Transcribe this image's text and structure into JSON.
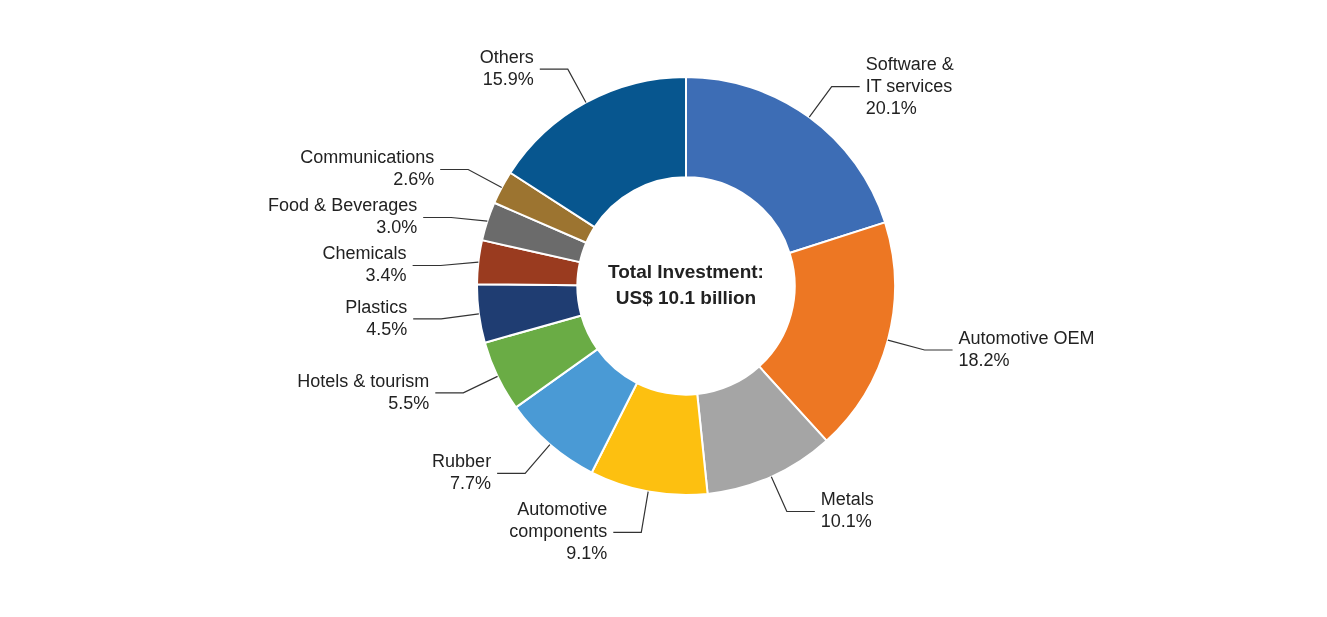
{
  "chart_data": {
    "type": "donut",
    "categories": [
      "Software & IT services",
      "Automotive OEM",
      "Metals",
      "Automotive components",
      "Rubber",
      "Hotels & tourism",
      "Plastics",
      "Chemicals",
      "Food & Beverages",
      "Communications",
      "Others"
    ],
    "values": [
      20.1,
      18.2,
      10.1,
      9.1,
      7.7,
      5.5,
      4.5,
      3.4,
      3.0,
      2.6,
      15.9
    ],
    "value_labels": [
      "20.1%",
      "18.2%",
      "10.1%",
      "9.1%",
      "7.7%",
      "5.5%",
      "4.5%",
      "3.4%",
      "3.0%",
      "2.6%",
      "15.9%"
    ],
    "colors": [
      "#3d6db5",
      "#ed7723",
      "#a5a5a5",
      "#fdc010",
      "#4a9ad5",
      "#6aac45",
      "#1f3d72",
      "#9a3b1f",
      "#6b6b6b",
      "#9c7430",
      "#07568f"
    ],
    "annotations": [
      "Total Investment:",
      "US$ 10.1 billion"
    ],
    "legend": false
  }
}
